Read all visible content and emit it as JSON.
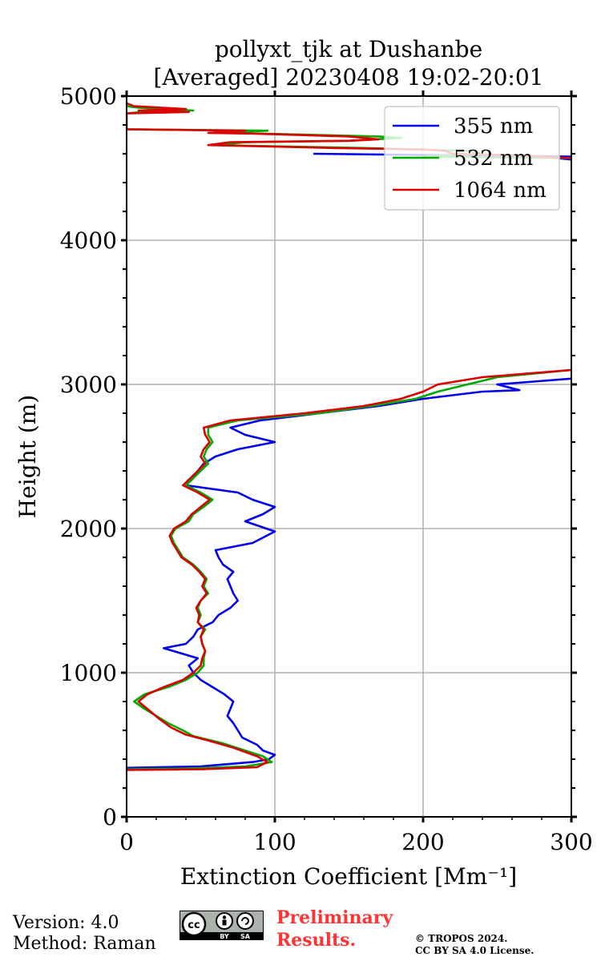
{
  "chart_data": {
    "type": "line",
    "title_line1": "pollyxt_tjk at Dushanbe",
    "title_line2": "[Averaged] 20230408 19:02-20:01",
    "xlabel": "Extinction Coefficient [Mm⁻¹]",
    "ylabel": "Height (m)",
    "xlim": [
      0,
      300
    ],
    "ylim": [
      0,
      5000
    ],
    "xticks": [
      "0",
      "100",
      "200",
      "300"
    ],
    "yticks": [
      "0",
      "1000",
      "2000",
      "3000",
      "4000",
      "5000"
    ],
    "grid": true,
    "legend_position": "top-right",
    "series": [
      {
        "name": "355 nm",
        "color": "#0000ee",
        "points": [
          [
            0,
            340
          ],
          [
            50,
            350
          ],
          [
            85,
            380
          ],
          [
            96,
            400
          ],
          [
            100,
            430
          ],
          [
            92,
            460
          ],
          [
            88,
            500
          ],
          [
            78,
            550
          ],
          [
            75,
            600
          ],
          [
            72,
            650
          ],
          [
            68,
            700
          ],
          [
            70,
            750
          ],
          [
            72,
            800
          ],
          [
            66,
            850
          ],
          [
            58,
            900
          ],
          [
            50,
            950
          ],
          [
            45,
            1000
          ],
          [
            42,
            1050
          ],
          [
            48,
            1100
          ],
          [
            25,
            1170
          ],
          [
            40,
            1200
          ],
          [
            45,
            1250
          ],
          [
            48,
            1300
          ],
          [
            58,
            1350
          ],
          [
            62,
            1400
          ],
          [
            70,
            1450
          ],
          [
            75,
            1500
          ],
          [
            72,
            1550
          ],
          [
            70,
            1600
          ],
          [
            68,
            1650
          ],
          [
            72,
            1700
          ],
          [
            65,
            1750
          ],
          [
            62,
            1800
          ],
          [
            60,
            1850
          ],
          [
            85,
            1900
          ],
          [
            100,
            1980
          ],
          [
            80,
            2050
          ],
          [
            92,
            2100
          ],
          [
            100,
            2150
          ],
          [
            85,
            2200
          ],
          [
            75,
            2250
          ],
          [
            40,
            2300
          ],
          [
            45,
            2350
          ],
          [
            48,
            2400
          ],
          [
            52,
            2450
          ],
          [
            60,
            2500
          ],
          [
            75,
            2550
          ],
          [
            100,
            2600
          ],
          [
            80,
            2650
          ],
          [
            70,
            2700
          ],
          [
            90,
            2750
          ],
          [
            130,
            2800
          ],
          [
            170,
            2850
          ],
          [
            200,
            2900
          ],
          [
            240,
            2950
          ],
          [
            265,
            2960
          ],
          [
            250,
            3000
          ],
          [
            300,
            3040
          ]
        ]
      },
      {
        "name": "532 nm",
        "color": "#00aa00",
        "points": [
          [
            0,
            330
          ],
          [
            40,
            335
          ],
          [
            80,
            350
          ],
          [
            98,
            380
          ],
          [
            92,
            420
          ],
          [
            80,
            460
          ],
          [
            65,
            510
          ],
          [
            45,
            560
          ],
          [
            38,
            600
          ],
          [
            28,
            650
          ],
          [
            20,
            700
          ],
          [
            12,
            750
          ],
          [
            5,
            800
          ],
          [
            12,
            850
          ],
          [
            28,
            900
          ],
          [
            40,
            950
          ],
          [
            48,
            1000
          ],
          [
            52,
            1050
          ],
          [
            52,
            1100
          ],
          [
            53,
            1150
          ],
          [
            51,
            1200
          ],
          [
            50,
            1250
          ],
          [
            53,
            1300
          ],
          [
            48,
            1350
          ],
          [
            50,
            1400
          ],
          [
            48,
            1450
          ],
          [
            50,
            1500
          ],
          [
            55,
            1550
          ],
          [
            52,
            1600
          ],
          [
            54,
            1650
          ],
          [
            50,
            1700
          ],
          [
            45,
            1750
          ],
          [
            38,
            1800
          ],
          [
            35,
            1850
          ],
          [
            32,
            1900
          ],
          [
            30,
            1950
          ],
          [
            33,
            2000
          ],
          [
            42,
            2050
          ],
          [
            45,
            2100
          ],
          [
            52,
            2150
          ],
          [
            58,
            2200
          ],
          [
            50,
            2250
          ],
          [
            40,
            2300
          ],
          [
            45,
            2350
          ],
          [
            50,
            2400
          ],
          [
            55,
            2450
          ],
          [
            52,
            2500
          ],
          [
            54,
            2550
          ],
          [
            58,
            2600
          ],
          [
            55,
            2650
          ],
          [
            55,
            2700
          ],
          [
            75,
            2750
          ],
          [
            130,
            2800
          ],
          [
            165,
            2850
          ],
          [
            195,
            2900
          ],
          [
            210,
            2950
          ],
          [
            230,
            3000
          ],
          [
            250,
            3050
          ],
          [
            300,
            3100
          ]
        ]
      },
      {
        "name": "1064 nm",
        "color": "#dd0000",
        "points": [
          [
            0,
            325
          ],
          [
            50,
            330
          ],
          [
            88,
            345
          ],
          [
            95,
            380
          ],
          [
            88,
            420
          ],
          [
            72,
            480
          ],
          [
            55,
            530
          ],
          [
            40,
            570
          ],
          [
            30,
            620
          ],
          [
            22,
            680
          ],
          [
            15,
            740
          ],
          [
            8,
            800
          ],
          [
            14,
            850
          ],
          [
            25,
            900
          ],
          [
            38,
            950
          ],
          [
            45,
            1000
          ],
          [
            50,
            1050
          ],
          [
            51,
            1100
          ],
          [
            53,
            1150
          ],
          [
            51,
            1200
          ],
          [
            50,
            1250
          ],
          [
            52,
            1300
          ],
          [
            48,
            1350
          ],
          [
            49,
            1400
          ],
          [
            47,
            1450
          ],
          [
            50,
            1500
          ],
          [
            54,
            1550
          ],
          [
            51,
            1600
          ],
          [
            53,
            1650
          ],
          [
            49,
            1700
          ],
          [
            44,
            1750
          ],
          [
            37,
            1800
          ],
          [
            34,
            1850
          ],
          [
            31,
            1900
          ],
          [
            29,
            1950
          ],
          [
            32,
            2000
          ],
          [
            40,
            2050
          ],
          [
            44,
            2100
          ],
          [
            50,
            2150
          ],
          [
            56,
            2200
          ],
          [
            48,
            2250
          ],
          [
            38,
            2300
          ],
          [
            43,
            2350
          ],
          [
            48,
            2400
          ],
          [
            53,
            2450
          ],
          [
            50,
            2500
          ],
          [
            52,
            2550
          ],
          [
            56,
            2600
          ],
          [
            53,
            2650
          ],
          [
            52,
            2700
          ],
          [
            70,
            2750
          ],
          [
            120,
            2800
          ],
          [
            160,
            2850
          ],
          [
            185,
            2900
          ],
          [
            200,
            2950
          ],
          [
            210,
            3000
          ],
          [
            240,
            3050
          ],
          [
            300,
            3100
          ]
        ]
      }
    ],
    "upper_excursions": [
      {
        "name": "355 nm",
        "color": "#0000ee",
        "points": [
          [
            126,
            4600
          ],
          [
            300,
            4580
          ],
          [
            290,
            4570
          ],
          [
            300,
            4560
          ]
        ]
      },
      {
        "name": "532 nm",
        "color": "#00aa00",
        "points": [
          [
            0,
            4930
          ],
          [
            8,
            4920
          ],
          [
            45,
            4900
          ],
          [
            10,
            4890
          ],
          [
            0,
            4880
          ],
          [
            0,
            4770
          ],
          [
            95,
            4760
          ],
          [
            60,
            4745
          ],
          [
            90,
            4740
          ],
          [
            170,
            4720
          ],
          [
            185,
            4710
          ],
          [
            150,
            4690
          ],
          [
            80,
            4680
          ],
          [
            60,
            4660
          ],
          [
            160,
            4640
          ],
          [
            230,
            4620
          ],
          [
            240,
            4600
          ],
          [
            200,
            4580
          ],
          [
            300,
            4570
          ]
        ]
      },
      {
        "name": "1064 nm",
        "color": "#dd0000",
        "points": [
          [
            0,
            4950
          ],
          [
            5,
            4930
          ],
          [
            40,
            4910
          ],
          [
            8,
            4900
          ],
          [
            42,
            4890
          ],
          [
            0,
            4880
          ],
          [
            0,
            4770
          ],
          [
            80,
            4760
          ],
          [
            55,
            4745
          ],
          [
            85,
            4740
          ],
          [
            150,
            4720
          ],
          [
            170,
            4700
          ],
          [
            150,
            4690
          ],
          [
            70,
            4680
          ],
          [
            55,
            4660
          ],
          [
            140,
            4640
          ],
          [
            200,
            4630
          ],
          [
            215,
            4620
          ],
          [
            220,
            4600
          ],
          [
            260,
            4590
          ],
          [
            300,
            4570
          ]
        ]
      }
    ]
  },
  "footer": {
    "version": "Version: 4.0",
    "method": "Method: Raman",
    "license_badge": "cc-by-sa-badge",
    "badge_text_by": "BY",
    "badge_text_sa": "SA",
    "badge_text_cc": "cc",
    "preliminary_line1": "Preliminary",
    "preliminary_line2": "Results.",
    "copyright_line1": "© TROPOS 2024.",
    "copyright_line2": "CC BY SA 4.0 License."
  }
}
